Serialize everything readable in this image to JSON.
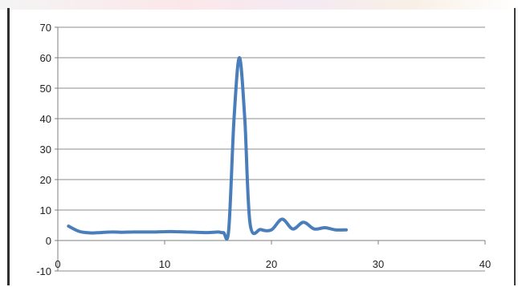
{
  "chart_data": {
    "type": "line",
    "title": "",
    "xlabel": "",
    "ylabel": "",
    "xlim": [
      0,
      40
    ],
    "ylim": [
      -10,
      70
    ],
    "xticks": [
      0,
      10,
      20,
      30,
      40
    ],
    "yticks": [
      -10,
      0,
      10,
      20,
      30,
      40,
      50,
      60,
      70
    ],
    "grid": "horizontal",
    "legend": "none",
    "line_color": "#4a7ebb",
    "series": [
      {
        "x": [
          1,
          2,
          3,
          4,
          5,
          6,
          7,
          8,
          9,
          10,
          11,
          12,
          13,
          14,
          15,
          15.5,
          16,
          16.5,
          17,
          17.5,
          18,
          19,
          20,
          21,
          22,
          23,
          24,
          25,
          26,
          27
        ],
        "values": [
          4.7,
          3.0,
          2.5,
          2.6,
          2.8,
          2.7,
          2.8,
          2.8,
          2.8,
          2.9,
          2.9,
          2.8,
          2.7,
          2.6,
          2.8,
          2.6,
          3.5,
          40,
          60,
          40,
          5.5,
          3.6,
          3.5,
          7.0,
          3.8,
          6.0,
          3.8,
          4.2,
          3.5,
          3.5
        ]
      }
    ]
  }
}
